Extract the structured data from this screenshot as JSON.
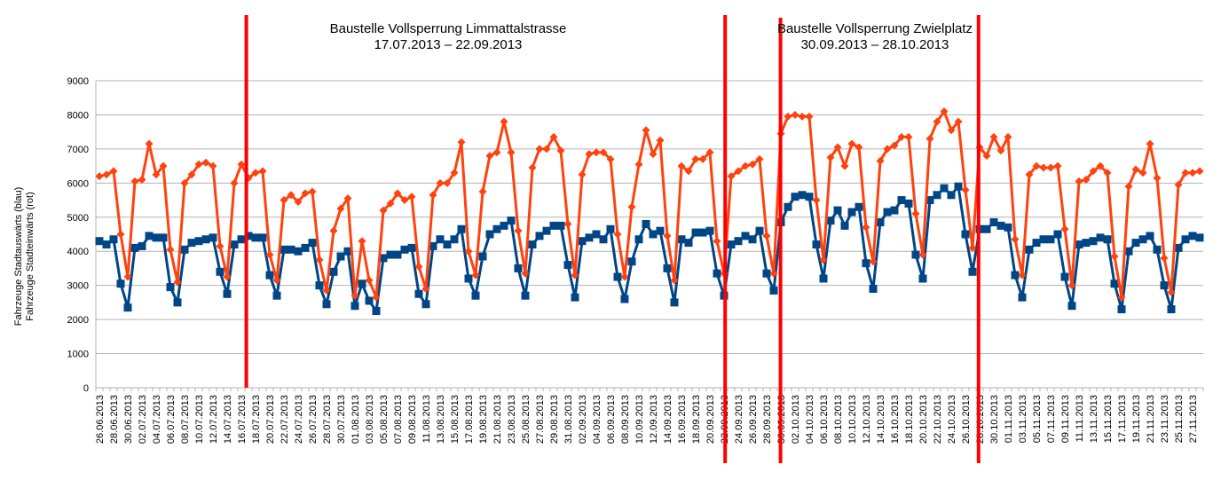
{
  "chart_data": {
    "type": "line",
    "title": "",
    "xlabel": "",
    "ylabel_lines": [
      "Fahrzeuge Stadtauswärts (blau)",
      "Fahrzeuge Stadteinwärts (rot)"
    ],
    "ylim": [
      0,
      9000
    ],
    "yticks": [
      0,
      1000,
      2000,
      3000,
      4000,
      5000,
      6000,
      7000,
      8000,
      9000
    ],
    "grid": "horizontal",
    "legend": "none",
    "x_start": "26.06.2013",
    "x_end": "28.11.2013",
    "x_label_every": 2,
    "colors": {
      "blue": "#004586",
      "red": "#ff420e",
      "marker_line": "#ff0000",
      "grid": "#b3b3b3"
    },
    "series": [
      {
        "color": "#004586",
        "marker": "square",
        "values": [
          4300,
          4200,
          4350,
          3050,
          2350,
          4100,
          4150,
          4450,
          4400,
          4400,
          2950,
          2500,
          4050,
          4250,
          4300,
          4350,
          4400,
          3400,
          2750,
          4200,
          4350,
          4450,
          4400,
          4400,
          3300,
          2700,
          4050,
          4050,
          4000,
          4100,
          4250,
          3000,
          2450,
          3400,
          3850,
          4000,
          2400,
          3050,
          2550,
          2250,
          3800,
          3900,
          3900,
          4050,
          4100,
          2750,
          2450,
          4150,
          4350,
          4200,
          4350,
          4650,
          3200,
          2700,
          3850,
          4500,
          4650,
          4750,
          4900,
          3500,
          2700,
          4200,
          4450,
          4600,
          4750,
          4750,
          3600,
          2650,
          4300,
          4400,
          4500,
          4350,
          4650,
          3250,
          2600,
          3700,
          4350,
          4800,
          4500,
          4600,
          3500,
          2500,
          4350,
          4250,
          4550,
          4550,
          4600,
          3350,
          2700,
          4200,
          4300,
          4450,
          4350,
          4600,
          3350,
          2850,
          4850,
          5300,
          5600,
          5650,
          5600,
          4200,
          3200,
          4900,
          5200,
          4750,
          5150,
          5300,
          3650,
          2900,
          4850,
          5150,
          5200,
          5500,
          5400,
          3900,
          3200,
          5500,
          5650,
          5850,
          5650,
          5900,
          4500,
          3400,
          4650,
          4650,
          4850,
          4750,
          4700,
          3300,
          2650,
          4050,
          4250,
          4350,
          4350,
          4500,
          3250,
          2400,
          4200,
          4250,
          4300,
          4400,
          4350,
          3050,
          2300,
          4000,
          4250,
          4350,
          4450,
          4050,
          3000,
          2300,
          4100,
          4350,
          4450,
          4400
        ]
      },
      {
        "color": "#ff420e",
        "marker": "diamond",
        "values": [
          6200,
          6250,
          6350,
          4500,
          3250,
          6050,
          6100,
          7150,
          6250,
          6500,
          4050,
          3100,
          6000,
          6250,
          6550,
          6600,
          6500,
          4150,
          3250,
          6000,
          6550,
          6150,
          6300,
          6350,
          3900,
          3150,
          5500,
          5650,
          5450,
          5700,
          5750,
          3750,
          2850,
          4600,
          5250,
          5550,
          2700,
          4300,
          3150,
          2650,
          5200,
          5400,
          5700,
          5500,
          5600,
          3550,
          2900,
          5650,
          6000,
          6000,
          6300,
          7200,
          4000,
          3300,
          5750,
          6800,
          6900,
          7800,
          6900,
          4600,
          3350,
          6450,
          7000,
          7000,
          7350,
          6950,
          4800,
          3300,
          6250,
          6850,
          6900,
          6900,
          6700,
          4500,
          3250,
          5300,
          6550,
          7550,
          6850,
          7250,
          4450,
          3150,
          6500,
          6350,
          6700,
          6700,
          6900,
          4300,
          3350,
          6200,
          6350,
          6500,
          6550,
          6700,
          4450,
          3350,
          7450,
          7950,
          8000,
          7950,
          7950,
          5500,
          3750,
          6750,
          7050,
          6500,
          7150,
          7050,
          4700,
          3700,
          6650,
          7000,
          7100,
          7350,
          7350,
          5100,
          3900,
          7300,
          7800,
          8100,
          7550,
          7800,
          5800,
          4100,
          7050,
          6800,
          7350,
          6950,
          7350,
          4350,
          3300,
          6250,
          6500,
          6450,
          6450,
          6500,
          4650,
          3000,
          6050,
          6100,
          6350,
          6500,
          6300,
          3850,
          2650,
          5900,
          6400,
          6300,
          7150,
          6150,
          3800,
          2800,
          5950,
          6300,
          6300,
          6350
        ]
      }
    ],
    "annotations": [
      {
        "title": "Baustelle Vollsperrung Limmattalstrasse",
        "range": "17.07.2013 – 22.09.2013",
        "start": "17.07.2013",
        "end": "22.09.2013"
      },
      {
        "title": "Baustelle Vollsperrung Zwielplatz",
        "range": "30.09.2013 – 28.10.2013",
        "start": "30.09.2013",
        "end": "28.10.2013"
      }
    ]
  }
}
